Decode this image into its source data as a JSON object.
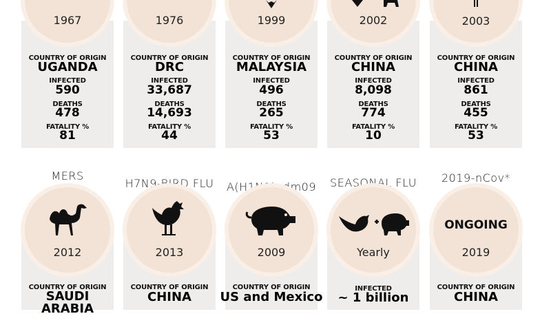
{
  "top_row": [
    {
      "year": "1967",
      "origin_label": "COUNTRY OF ORIGIN",
      "country": "UGANDA",
      "infected_label": "INFECTED",
      "infected": "590",
      "deaths_label": "DEATHS",
      "deaths": "478",
      "fatality_label": "FATALITY %",
      "fatality": "81"
    },
    {
      "year": "1976",
      "origin_label": "COUNTRY OF ORIGIN",
      "country": "DRC",
      "infected_label": "INFECTED",
      "infected": "33,687",
      "deaths_label": "DEATHS",
      "deaths": "14,693",
      "fatality_label": "FATALITY %",
      "fatality": "44"
    },
    {
      "year": "1999",
      "origin_label": "COUNTRY OF ORIGIN",
      "country": "MALAYSIA",
      "infected_label": "INFECTED",
      "infected": "496",
      "deaths_label": "DEATHS",
      "deaths": "265",
      "fatality_label": "FATALITY %",
      "fatality": "53"
    },
    {
      "year": "2002",
      "origin_label": "COUNTRY OF ORIGIN",
      "country": "CHINA",
      "infected_label": "INFECTED",
      "infected": "8,098",
      "deaths_label": "DEATHS",
      "deaths": "774",
      "fatality_label": "FATALITY %",
      "fatality": "10"
    },
    {
      "year": "2003",
      "origin_label": "COUNTRY OF ORIGIN",
      "country": "CHINA",
      "infected_label": "INFECTED",
      "infected": "861",
      "deaths_label": "DEATHS",
      "deaths": "455",
      "fatality_label": "FATALITY %",
      "fatality": "53"
    }
  ],
  "bottom_row": [
    {
      "title": "MERS",
      "year": "2012",
      "origin_label": "COUNTRY OF ORIGIN",
      "country": "SAUDI ARABIA",
      "icon": "camel-icon"
    },
    {
      "title": "H7N9-BIRD FLU",
      "year": "2013",
      "origin_label": "COUNTRY OF ORIGIN",
      "country": "CHINA",
      "icon": "rooster-icon"
    },
    {
      "title": "A(H1N1)pdm09",
      "year": "2009",
      "origin_label": "COUNTRY OF ORIGIN",
      "country": "US and Mexico",
      "icon": "pig-icon"
    },
    {
      "title": "SEASONAL FLU",
      "year": "Yearly",
      "infected_label": "INFECTED",
      "infected": "~ 1 billion",
      "icon": "bird-plus-pig-icon"
    },
    {
      "title": "2019-nCov*",
      "status": "ONGOING",
      "year": "2019",
      "origin_label": "COUNTRY OF ORIGIN",
      "country": "CHINA"
    }
  ],
  "colors": {
    "card": "#efedeb",
    "circle": "#f3e3d6",
    "circle_ring": "#f9efe6"
  }
}
